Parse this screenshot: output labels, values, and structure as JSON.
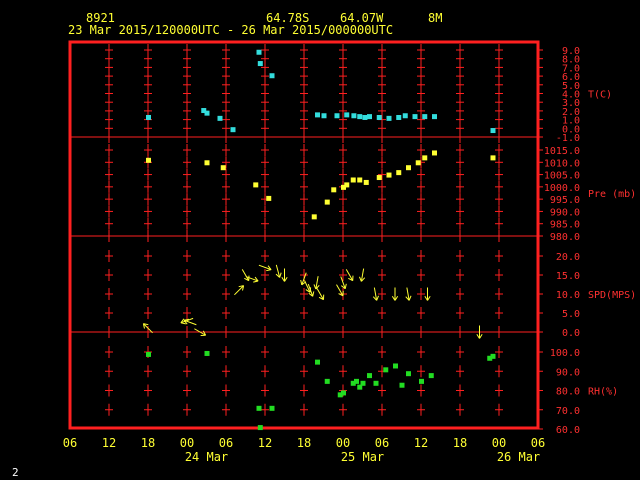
{
  "header": {
    "station_id": "8921",
    "lat": "64.78S",
    "lon": "64.07W",
    "elev": "8M",
    "time_range": "23 Mar 2015/120000UTC - 26 Mar 2015/000000UTC"
  },
  "corner_label": "2",
  "colors": {
    "frame": "#ff2020",
    "axis_text": "#ff3030",
    "header_text": "#ffff33",
    "temperature": "#33dddd",
    "pressure": "#ffff33",
    "wind": "#ffff33",
    "humidity": "#22dd22",
    "background": "#000000"
  },
  "chart_data": {
    "type": "scatter",
    "x_unit": "hours since 23 Mar 2015 06 UTC",
    "x_tick_labels": [
      "06",
      "12",
      "18",
      "00",
      "06",
      "12",
      "18",
      "00",
      "06",
      "12",
      "18",
      "00",
      "06"
    ],
    "x_date_labels": [
      "24 Mar",
      "25 Mar",
      "26 Mar"
    ],
    "panels": [
      {
        "name": "T(C)",
        "ticks": [
          "9.0",
          "8.0",
          "7.0",
          "6.0",
          "5.0",
          "4.0",
          "3.0",
          "2.0",
          "1.0",
          "0.0",
          "-1.0"
        ],
        "ylim": [
          -1,
          9
        ],
        "points": [
          [
            12,
            1.3
          ],
          [
            20.5,
            2.1
          ],
          [
            21,
            1.8
          ],
          [
            23,
            1.2
          ],
          [
            25,
            -0.1
          ],
          [
            29,
            8.8
          ],
          [
            29.2,
            7.5
          ],
          [
            31,
            6.1
          ],
          [
            38,
            1.6
          ],
          [
            39,
            1.5
          ],
          [
            41,
            1.5
          ],
          [
            42.5,
            1.6
          ],
          [
            43.6,
            1.5
          ],
          [
            44.5,
            1.4
          ],
          [
            45.3,
            1.3
          ],
          [
            46,
            1.4
          ],
          [
            47.5,
            1.3
          ],
          [
            49,
            1.2
          ],
          [
            50.5,
            1.3
          ],
          [
            51.5,
            1.5
          ],
          [
            53,
            1.4
          ],
          [
            54.5,
            1.4
          ],
          [
            56,
            1.4
          ],
          [
            65,
            -0.2
          ]
        ]
      },
      {
        "name": "Pre (mb)",
        "ticks": [
          "1015.0",
          "1010.0",
          "1005.0",
          "1000.0",
          "995.0",
          "990.0",
          "985.0",
          "980.0"
        ],
        "ylim": [
          980,
          1015
        ],
        "points": [
          [
            12,
            1011
          ],
          [
            21,
            1010
          ],
          [
            23.5,
            1008
          ],
          [
            28.5,
            1001
          ],
          [
            30.5,
            995.5
          ],
          [
            37.5,
            988
          ],
          [
            39.5,
            994
          ],
          [
            40.5,
            999
          ],
          [
            42,
            1000
          ],
          [
            42.5,
            1001
          ],
          [
            43.5,
            1003
          ],
          [
            44.5,
            1003
          ],
          [
            45.5,
            1002
          ],
          [
            47.5,
            1004
          ],
          [
            49,
            1005
          ],
          [
            50.5,
            1006
          ],
          [
            52,
            1008
          ],
          [
            53.5,
            1010
          ],
          [
            54.5,
            1012
          ],
          [
            56,
            1014
          ],
          [
            65,
            1012
          ]
        ]
      },
      {
        "name": "SPD(MPS)",
        "ticks": [
          "20.0",
          "15.0",
          "10.0",
          "5.0",
          "0.0"
        ],
        "ylim": [
          0,
          20
        ],
        "barbs": [
          [
            12,
            1,
            225
          ],
          [
            18,
            3,
            160
          ],
          [
            18.5,
            2.5,
            200
          ],
          [
            20,
            0,
            30
          ],
          [
            26,
            11,
            315
          ],
          [
            27,
            15,
            60
          ],
          [
            28,
            14,
            20
          ],
          [
            30,
            17,
            20
          ],
          [
            32,
            16,
            75
          ],
          [
            33,
            15,
            90
          ],
          [
            36,
            14,
            110
          ],
          [
            36.5,
            12,
            65
          ],
          [
            37,
            11,
            70
          ],
          [
            38,
            13,
            100
          ],
          [
            38.5,
            10,
            60
          ],
          [
            41.5,
            11,
            60
          ],
          [
            42,
            13,
            70
          ],
          [
            43,
            15,
            60
          ],
          [
            45,
            15,
            100
          ],
          [
            47,
            10,
            80
          ],
          [
            50,
            10,
            90
          ],
          [
            52,
            10,
            80
          ],
          [
            55,
            10,
            90
          ],
          [
            63,
            0,
            90
          ]
        ]
      },
      {
        "name": "RH(%)",
        "ticks": [
          "100.0",
          "90.0",
          "80.0",
          "70.0",
          "60.0"
        ],
        "ylim": [
          60,
          100
        ],
        "points": [
          [
            12,
            99
          ],
          [
            21,
            99.5
          ],
          [
            29,
            71
          ],
          [
            29.2,
            61
          ],
          [
            31,
            71
          ],
          [
            38,
            95
          ],
          [
            39.5,
            85
          ],
          [
            41.5,
            78
          ],
          [
            42,
            79
          ],
          [
            43.5,
            84
          ],
          [
            44,
            85
          ],
          [
            44.5,
            82
          ],
          [
            45,
            84
          ],
          [
            46,
            88
          ],
          [
            47,
            84
          ],
          [
            48.5,
            91
          ],
          [
            50,
            93
          ],
          [
            51,
            83
          ],
          [
            52,
            89
          ],
          [
            54,
            85
          ],
          [
            55.5,
            88
          ],
          [
            64.5,
            97
          ],
          [
            65,
            98
          ]
        ]
      }
    ]
  }
}
